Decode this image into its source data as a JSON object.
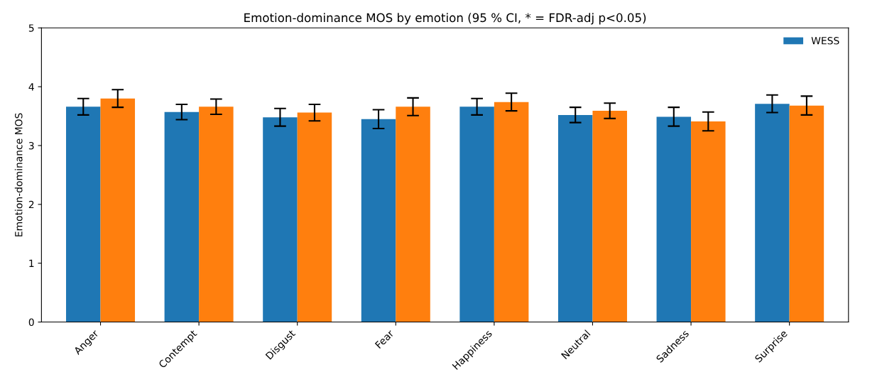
{
  "chart_data": {
    "type": "bar",
    "title": "Emotion-dominance MOS by emotion (95 % CI, * = FDR-adj p<0.05)",
    "ylabel": "Emotion-dominance MOS",
    "categories": [
      "Anger",
      "Contempt",
      "Disgust",
      "Fear",
      "Happiness",
      "Neutral",
      "Sadness",
      "Surprise"
    ],
    "series": [
      {
        "name": "WESS",
        "color": "#1f77b4",
        "values": [
          3.66,
          3.57,
          3.48,
          3.45,
          3.66,
          3.52,
          3.49,
          3.71
        ],
        "errors": [
          0.14,
          0.13,
          0.15,
          0.16,
          0.14,
          0.13,
          0.16,
          0.15
        ]
      },
      {
        "color": "#ff7f0e",
        "values": [
          3.8,
          3.66,
          3.56,
          3.66,
          3.74,
          3.59,
          3.41,
          3.68
        ],
        "errors": [
          0.15,
          0.13,
          0.14,
          0.15,
          0.15,
          0.13,
          0.16,
          0.16
        ]
      }
    ],
    "ylim": [
      0,
      5
    ],
    "yticks": [
      0,
      1,
      2,
      3,
      4,
      5
    ],
    "legend": "top right",
    "grid": false
  }
}
